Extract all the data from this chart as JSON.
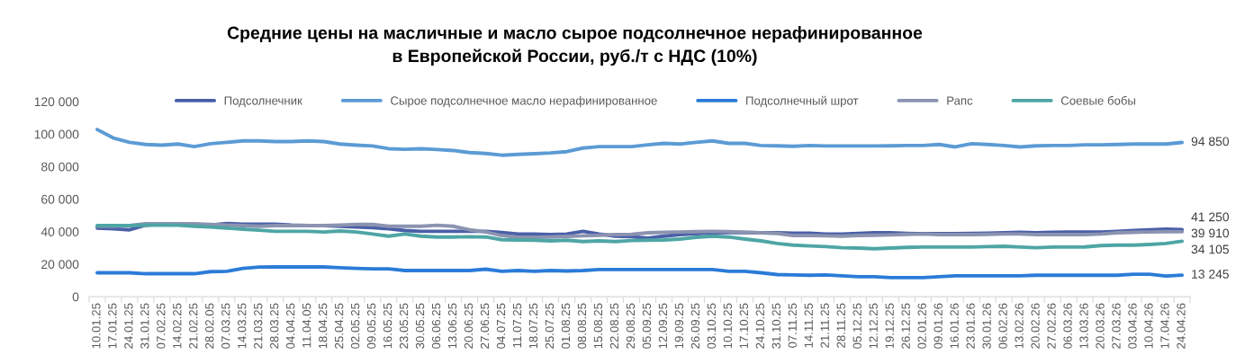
{
  "chart_data": {
    "type": "line",
    "title": "Средние цены на масличные и масло сырое подсолнечное нерафинированное\nв Европейской России, руб./т с НДС (10%)",
    "categories": [
      "10.01.25",
      "17.01.25",
      "24.01.25",
      "31.01.25",
      "07.02.25",
      "14.02.25",
      "21.02.25",
      "28.02.05",
      "07.03.25",
      "14.03.25",
      "21.03.25",
      "28.03.25",
      "04.04.25",
      "11.04.05",
      "18.04.25",
      "25.04.25",
      "02.05.25",
      "09.05.25",
      "16.05.25",
      "23.05.25",
      "30.05.25",
      "06.06.25",
      "13.06.25",
      "20.06.25",
      "27.06.25",
      "04.07.25",
      "11.07.25",
      "18.07.25",
      "25.07.25",
      "01.08.25",
      "08.08.25",
      "15.08.25",
      "22.08.25",
      "29.08.25",
      "05.09.25",
      "12.09.25",
      "19.09.25",
      "26.09.25",
      "03.10.25",
      "10.10.25",
      "17.10.25",
      "24.10.25",
      "31.10.25",
      "07.11.25",
      "14.11.25",
      "21.11.25",
      "28.11.25",
      "05.12.25",
      "12.12.25",
      "19.12.25",
      "26.12.25",
      "02.01.26",
      "09.01.26",
      "16.01.26",
      "23.01.26",
      "30.01.26",
      "06.02.26",
      "13.02.26",
      "20.02.26",
      "27.02.26",
      "06.03.26",
      "13.03.26",
      "20.03.26",
      "27.03.26",
      "03.04.26",
      "10.04.26",
      "17.04.26",
      "24.04.26"
    ],
    "ylim": [
      0,
      120000
    ],
    "yticks": [
      0,
      {
        "value": 20000,
        "label": "20 000"
      },
      {
        "value": 40000,
        "label": "40 000"
      },
      {
        "value": 60000,
        "label": "60 000"
      },
      {
        "value": 80000,
        "label": "80 000"
      },
      {
        "value": 100000,
        "label": "100 000"
      },
      {
        "value": 120000,
        "label": "120 000"
      }
    ],
    "legend": "top",
    "series": [
      {
        "name": "Подсолнечник",
        "color": "#4a5fa8",
        "values": [
          42200,
          41700,
          41100,
          44000,
          44600,
          44600,
          44400,
          44000,
          45000,
          44600,
          44600,
          44600,
          44000,
          43700,
          43700,
          43300,
          42900,
          42400,
          41800,
          40700,
          40200,
          40200,
          40200,
          40200,
          40200,
          39400,
          38500,
          38500,
          38200,
          38500,
          40200,
          38500,
          37200,
          36900,
          36000,
          37200,
          38200,
          38700,
          39300,
          39400,
          39400,
          39300,
          39300,
          39100,
          39000,
          38500,
          38500,
          38900,
          39300,
          39300,
          38900,
          38700,
          38700,
          38700,
          38900,
          39100,
          39300,
          39600,
          39300,
          39600,
          39800,
          39800,
          39800,
          40200,
          40700,
          41100,
          41500,
          41250
        ],
        "value_labels": [
          null,
          null,
          null,
          null,
          null,
          null,
          null,
          null,
          null,
          null,
          null,
          null,
          null,
          null,
          null,
          null,
          null,
          null,
          null,
          null,
          null,
          null,
          null,
          null,
          null,
          null,
          null,
          null,
          null,
          null,
          null,
          null,
          null,
          null,
          null,
          null,
          null,
          null,
          null,
          null,
          null,
          null,
          null,
          null,
          null,
          null,
          null,
          null,
          null,
          null,
          null,
          null,
          null,
          null,
          null,
          null,
          null,
          null,
          null,
          null,
          null,
          null,
          null,
          null,
          null,
          null,
          null,
          "41 250"
        ]
      },
      {
        "name": "Сырое подсолнечное масло нерафинированное",
        "color": "#5b9bd5",
        "values": [
          102800,
          97600,
          94900,
          93600,
          93200,
          93900,
          92300,
          94100,
          94900,
          95800,
          95800,
          95400,
          95400,
          95800,
          95400,
          93900,
          93200,
          92700,
          91000,
          90600,
          91000,
          90500,
          89900,
          88600,
          88100,
          87000,
          87500,
          87900,
          88400,
          89200,
          91400,
          92300,
          92300,
          92300,
          93400,
          94300,
          93900,
          94900,
          95800,
          94300,
          94300,
          93000,
          92800,
          92500,
          93000,
          92700,
          92700,
          92700,
          92700,
          92800,
          93000,
          93000,
          93600,
          92100,
          94100,
          93600,
          93000,
          92100,
          92800,
          93000,
          93000,
          93400,
          93400,
          93600,
          93900,
          93900,
          93900,
          94850
        ],
        "value_labels": [
          null,
          null,
          null,
          null,
          null,
          null,
          null,
          null,
          null,
          null,
          null,
          null,
          null,
          null,
          null,
          null,
          null,
          null,
          null,
          null,
          null,
          null,
          null,
          null,
          null,
          null,
          null,
          null,
          null,
          null,
          null,
          null,
          null,
          null,
          null,
          null,
          null,
          null,
          null,
          null,
          null,
          null,
          null,
          null,
          null,
          null,
          null,
          null,
          null,
          null,
          null,
          null,
          null,
          null,
          null,
          null,
          null,
          null,
          null,
          null,
          null,
          null,
          null,
          null,
          null,
          null,
          null,
          "94 850"
        ]
      },
      {
        "name": "Подсолнечный шрот",
        "color": "#2b7bd8",
        "values": [
          14700,
          14700,
          14700,
          14100,
          14100,
          14100,
          14100,
          15400,
          15600,
          17400,
          18200,
          18300,
          18300,
          18300,
          18300,
          17800,
          17400,
          17100,
          17100,
          16100,
          16100,
          16100,
          16100,
          16100,
          16900,
          15600,
          16100,
          15600,
          16100,
          15800,
          16100,
          16700,
          16700,
          16700,
          16700,
          16700,
          16700,
          16700,
          16700,
          15600,
          15600,
          14700,
          13600,
          13400,
          13200,
          13400,
          12800,
          12300,
          12300,
          11700,
          11700,
          11700,
          12300,
          12800,
          12800,
          12800,
          12800,
          12800,
          13200,
          13200,
          13200,
          13200,
          13200,
          13200,
          13800,
          13800,
          12700,
          13245
        ],
        "value_labels": [
          null,
          null,
          null,
          null,
          null,
          null,
          null,
          null,
          null,
          null,
          null,
          null,
          null,
          null,
          null,
          null,
          null,
          null,
          null,
          null,
          null,
          null,
          null,
          null,
          null,
          null,
          null,
          null,
          null,
          null,
          null,
          null,
          null,
          null,
          null,
          null,
          null,
          null,
          null,
          null,
          null,
          null,
          null,
          null,
          null,
          null,
          null,
          null,
          null,
          null,
          null,
          null,
          null,
          null,
          null,
          null,
          null,
          null,
          null,
          null,
          null,
          null,
          null,
          null,
          null,
          null,
          null,
          "13 245"
        ]
      },
      {
        "name": "Рапс",
        "color": "#8b93b0",
        "values": [
          43300,
          43300,
          43700,
          44800,
          44800,
          44800,
          44800,
          44400,
          44000,
          43700,
          43300,
          43700,
          43700,
          43700,
          43700,
          44000,
          44400,
          44400,
          43300,
          43300,
          43300,
          43900,
          43300,
          41100,
          39800,
          37600,
          36500,
          36500,
          36700,
          37100,
          37400,
          37800,
          38200,
          38300,
          39300,
          39600,
          39800,
          40000,
          40200,
          40000,
          39600,
          39300,
          38900,
          37600,
          37600,
          37400,
          37200,
          37600,
          37800,
          38000,
          38300,
          38500,
          38200,
          38200,
          38200,
          38300,
          38500,
          38500,
          38200,
          38200,
          38200,
          38200,
          38500,
          39300,
          39600,
          39800,
          40000,
          39910
        ],
        "value_labels": [
          null,
          null,
          null,
          null,
          null,
          null,
          null,
          null,
          null,
          null,
          null,
          null,
          null,
          null,
          null,
          null,
          null,
          null,
          null,
          null,
          null,
          null,
          null,
          null,
          null,
          null,
          null,
          null,
          null,
          null,
          null,
          null,
          null,
          null,
          null,
          null,
          null,
          null,
          null,
          null,
          null,
          null,
          null,
          null,
          null,
          null,
          null,
          null,
          null,
          null,
          null,
          null,
          null,
          null,
          null,
          null,
          null,
          null,
          null,
          null,
          null,
          null,
          null,
          null,
          null,
          null,
          null,
          "39 910"
        ]
      },
      {
        "name": "Соевые бобы",
        "color": "#4ea5a5",
        "values": [
          43700,
          43700,
          43700,
          44000,
          44000,
          43900,
          43300,
          42800,
          42200,
          41500,
          40900,
          40200,
          40200,
          40200,
          39800,
          40400,
          39800,
          38500,
          37200,
          38500,
          37200,
          36700,
          36700,
          36900,
          36700,
          35000,
          34900,
          34700,
          34300,
          34700,
          33900,
          34300,
          33900,
          34500,
          34700,
          34900,
          35400,
          36500,
          37200,
          36700,
          35400,
          34300,
          32700,
          31700,
          31200,
          30800,
          30100,
          29900,
          29500,
          29900,
          30300,
          30500,
          30500,
          30500,
          30500,
          30800,
          31000,
          30500,
          30100,
          30500,
          30500,
          30600,
          31400,
          31700,
          31700,
          32100,
          32700,
          34105
        ],
        "value_labels": [
          null,
          null,
          null,
          null,
          null,
          null,
          null,
          null,
          null,
          null,
          null,
          null,
          null,
          null,
          null,
          null,
          null,
          null,
          null,
          null,
          null,
          null,
          null,
          null,
          null,
          null,
          null,
          null,
          null,
          null,
          null,
          null,
          null,
          null,
          null,
          null,
          null,
          null,
          null,
          null,
          null,
          null,
          null,
          null,
          null,
          null,
          null,
          null,
          null,
          null,
          null,
          null,
          null,
          null,
          null,
          null,
          null,
          null,
          null,
          null,
          null,
          null,
          null,
          null,
          null,
          null,
          null,
          "34 105"
        ]
      }
    ]
  }
}
